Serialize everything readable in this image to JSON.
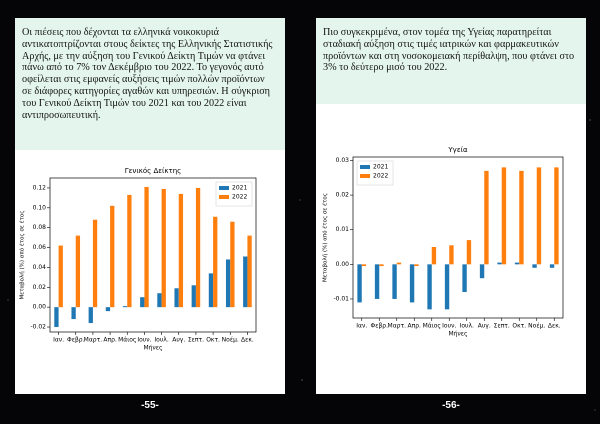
{
  "pages": [
    {
      "text": "Οι πιέσεις που δέχονται τα ελληνικά νοικοκυριά αντικατοπτρίζονται στους δείκτες της Ελληνικής Στατιστικής Αρχής,  με την αύξηση του Γενικού Δείκτη Τιμών να φτάνει πάνω από το 7% τον Δεκέμβριο του 2022. Το γεγονός αυτό οφείλεται στις εμφανείς αυξήσεις τιμών πολλών προϊόντων σε διάφορες κατηγορίες αγαθών και υπηρεσιών. Η σύγκριση του Γενικού Δείκτη Τιμών του 2021 και του 2022 είναι αντιπροσωπευτική.",
      "page_number": "-55-"
    },
    {
      "text": "Πιο συγκεκριμένα, στον τομέα της Υγείας παρατηρείται σταδιακή αύξηση στις τιμές ιατρικών και φαρμακευτικών προϊόντων και στη νοσοκομειακή περίθαλψη, που φτάνει στο 3% το δεύτερο μισό του 2022.",
      "page_number": "-56-"
    }
  ],
  "chart_data": [
    {
      "type": "bar",
      "title": "Γενικός Δείκτης",
      "x_label": "Μήνες",
      "y_label": "Μεταβολή (%) από έτος σε έτος",
      "categories": [
        "Ιαν.",
        "Φεβρ.",
        "Μαρτ.",
        "Απρ.",
        "Μάιος",
        "Ιουν.",
        "Ιουλ.",
        "Αυγ.",
        "Σεπτ.",
        "Οκτ.",
        "Νοέμ.",
        "Δεκ."
      ],
      "series": [
        {
          "name": "2021",
          "color": "#1f77b4",
          "values": [
            -0.02,
            -0.012,
            -0.016,
            -0.004,
            0.001,
            0.01,
            0.014,
            0.019,
            0.022,
            0.034,
            0.048,
            0.051
          ]
        },
        {
          "name": "2022",
          "color": "#ff7f0e",
          "values": [
            0.062,
            0.072,
            0.088,
            0.102,
            0.113,
            0.121,
            0.119,
            0.114,
            0.12,
            0.091,
            0.086,
            0.072
          ]
        }
      ],
      "ylim": [
        -0.025,
        0.13
      ],
      "yticks": [
        -0.02,
        {
          "value": 0,
          "label": "0.00"
        },
        0.02,
        0.04,
        0.06,
        0.08,
        {
          "value": 0.1,
          "label": "0.10"
        },
        0.12
      ],
      "legend": "upper right"
    },
    {
      "type": "bar",
      "title": "Υγεία",
      "x_label": "Μήνες",
      "y_label": "Μεταβολή (%) από έτος σε έτος",
      "categories": [
        "Ιαν.",
        "Φεβρ.",
        "Μαρτ.",
        "Απρ.",
        "Μάιος",
        "Ιουν.",
        "Ιουλ.",
        "Αυγ.",
        "Σεπτ.",
        "Οκτ.",
        "Νοέμ.",
        "Δεκ."
      ],
      "series": [
        {
          "name": "2021",
          "color": "#1f77b4",
          "values": [
            -0.011,
            -0.01,
            -0.01,
            -0.011,
            -0.013,
            -0.013,
            -0.008,
            -0.004,
            0.0005,
            0.0005,
            -0.001,
            -0.001
          ]
        },
        {
          "name": "2022",
          "color": "#ff7f0e",
          "values": [
            -0.0005,
            -0.0005,
            0.0005,
            -0.0005,
            0.005,
            0.0055,
            0.007,
            0.027,
            0.028,
            0.027,
            0.028,
            0.028
          ]
        }
      ],
      "ylim": [
        -0.0155,
        0.031
      ],
      "yticks": [
        -0.01,
        {
          "value": 0,
          "label": "0.00"
        },
        0.01,
        0.02,
        0.03
      ],
      "legend": "upper left"
    }
  ]
}
